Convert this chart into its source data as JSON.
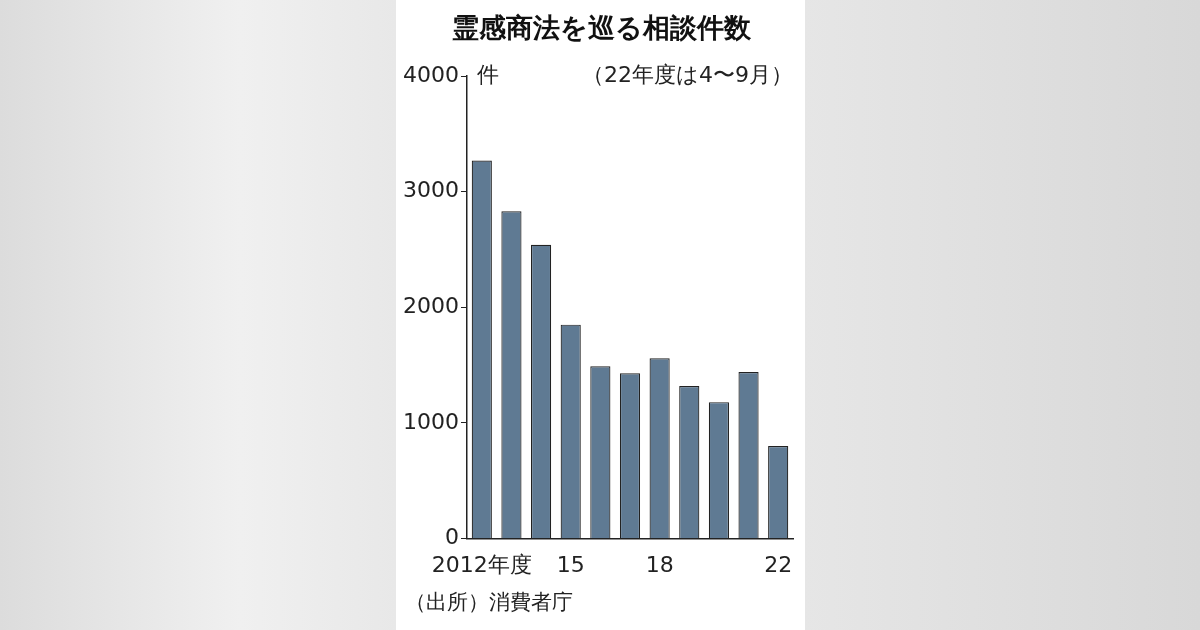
{
  "chart_data": {
    "type": "bar",
    "title": "霊感商法を巡る相談件数",
    "subtitle": "（22年度は4〜9月）",
    "ylabel": "件",
    "categories": [
      "2012年度",
      null,
      null,
      "15",
      null,
      null,
      "18",
      null,
      null,
      null,
      "22"
    ],
    "values": [
      3270,
      2830,
      2540,
      1850,
      1490,
      1430,
      1560,
      1320,
      1180,
      1440,
      800
    ],
    "color": "#5f7a93",
    "ylim": [
      0,
      4000
    ],
    "yticks": [
      0,
      1000,
      2000,
      3000,
      4000
    ],
    "grid": false,
    "legend": false,
    "annotations": [
      "（出所）消費者庁"
    ]
  }
}
